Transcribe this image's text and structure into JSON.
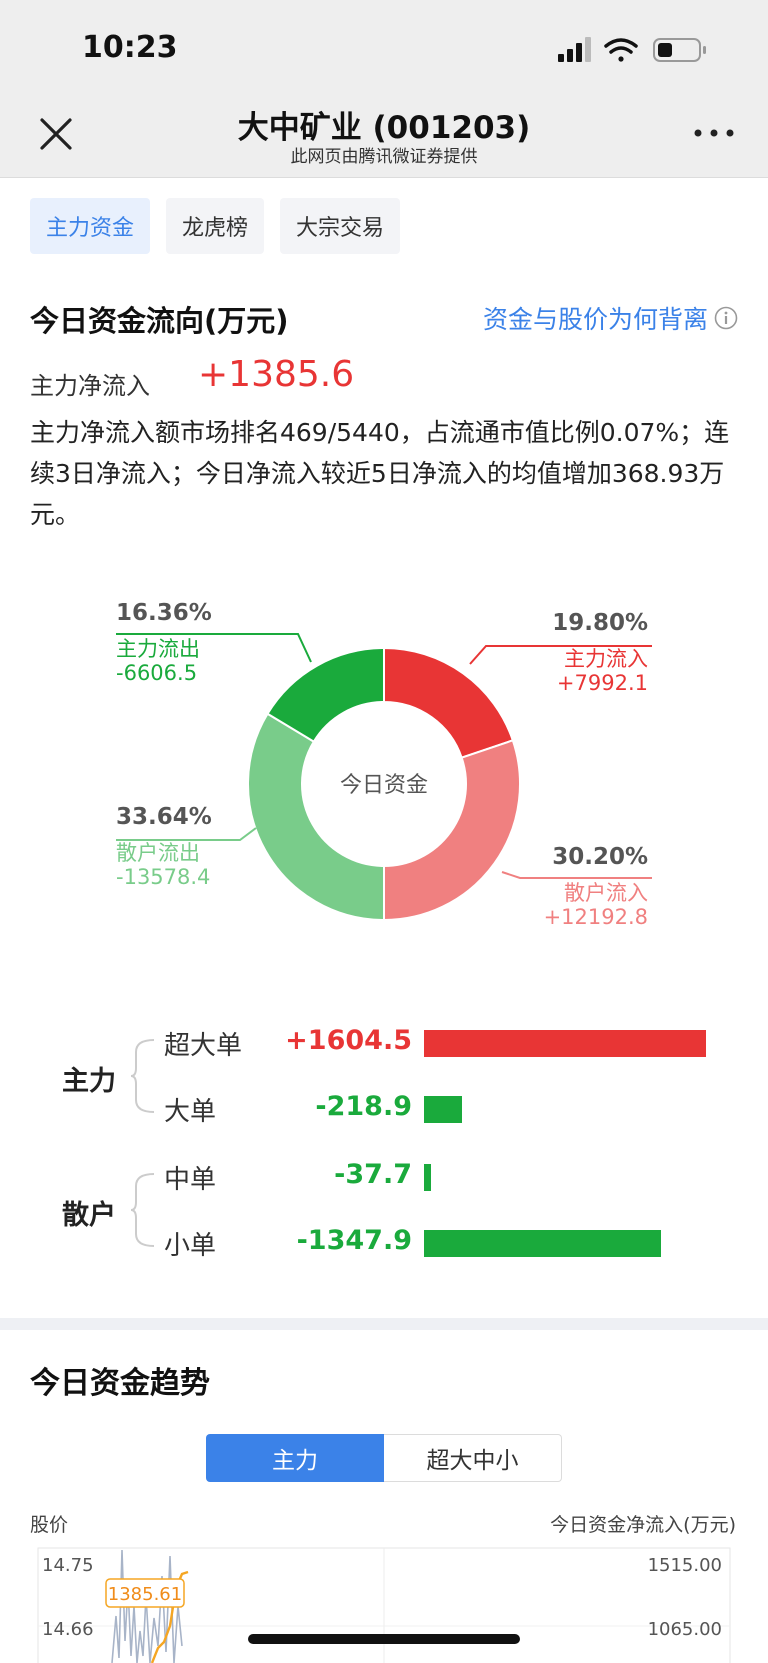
{
  "status_bar": {
    "time": "10:23"
  },
  "header": {
    "title": "大中矿业 (001203)",
    "subtitle": "此网页由腾讯微证券提供"
  },
  "tabs": [
    {
      "label": "主力资金",
      "active": true
    },
    {
      "label": "龙虎榜",
      "active": false
    },
    {
      "label": "大宗交易",
      "active": false
    }
  ],
  "flow": {
    "title": "今日资金流向(万元)",
    "link": "资金与股价为何背离",
    "net_label": "主力净流入",
    "net_value": "+1385.6",
    "description": "主力净流入额市场排名469/5440，占流通市值比例0.07%；连续3日净流入；今日净流入较近5日净流入的均值增加368.93万元。"
  },
  "chart_data": [
    {
      "type": "pie",
      "center_label": "今日资金",
      "slices": [
        {
          "label": "主力流入",
          "percent": "19.80%",
          "value": "+7992.1",
          "share": 19.8,
          "color": "#e83535"
        },
        {
          "label": "散户流入",
          "percent": "30.20%",
          "value": "+12192.8",
          "share": 30.2,
          "color": "#f08080"
        },
        {
          "label": "散户流出",
          "percent": "33.64%",
          "value": "-13578.4",
          "share": 33.64,
          "color": "#79cc8a"
        },
        {
          "label": "主力流出",
          "percent": "16.36%",
          "value": "-6606.5",
          "share": 16.36,
          "color": "#1aaa3c"
        }
      ]
    },
    {
      "type": "bar",
      "groups": [
        {
          "label": "主力",
          "rows": [
            {
              "label": "超大单",
              "value": "+1604.5",
              "amount": 1604.5,
              "color": "#e83535"
            },
            {
              "label": "大单",
              "value": "-218.9",
              "amount": 218.9,
              "color": "#1aaa3c"
            }
          ]
        },
        {
          "label": "散户",
          "rows": [
            {
              "label": "中单",
              "value": "-37.7",
              "amount": 37.7,
              "color": "#1aaa3c"
            },
            {
              "label": "小单",
              "value": "-1347.9",
              "amount": 1347.9,
              "color": "#1aaa3c"
            }
          ]
        }
      ],
      "max_amount": 1604.5
    },
    {
      "type": "line",
      "title": "今日资金趋势",
      "y_left_title": "股价",
      "y_right_title": "今日资金净流入(万元)",
      "y_left_ticks": [
        "14.75",
        "14.66"
      ],
      "y_right_ticks": [
        "1515.00",
        "1065.00"
      ],
      "current_label": "1385.61"
    }
  ],
  "trend": {
    "tabs": [
      {
        "label": "主力",
        "active": true
      },
      {
        "label": "超大中小",
        "active": false
      }
    ]
  }
}
